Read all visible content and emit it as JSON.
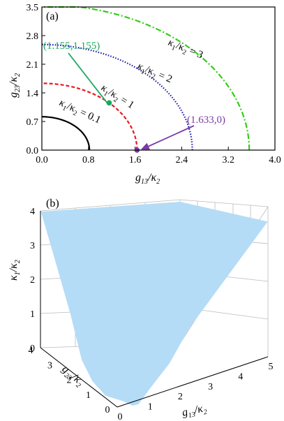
{
  "chart_data": [
    {
      "panel_label": "(a)",
      "type": "line",
      "xlabel": {
        "base": "g",
        "sub": "13",
        "den_base": "κ",
        "den_sub": "2"
      },
      "ylabel": {
        "base": "g",
        "sub": "23",
        "den_base": "κ",
        "den_sub": "2"
      },
      "xlim": [
        0,
        4.0
      ],
      "ylim": [
        0,
        3.5
      ],
      "xticks": [
        "0.0",
        "0.8",
        "1.6",
        "2.4",
        "3.2",
        "4.0"
      ],
      "yticks": [
        "0.0",
        "0.7",
        "1.4",
        "2.1",
        "2.8",
        "3.5"
      ],
      "series": [
        {
          "ratio": 0.1,
          "radius": 0.816,
          "color": "#000000",
          "style": "solid",
          "label": {
            "base": "κ",
            "s1": "1",
            "mid": "/κ",
            "s2": "2",
            "tail": " = 0.1"
          }
        },
        {
          "ratio": 1,
          "radius": 1.633,
          "color": "#e8191f",
          "style": "dashed",
          "label": {
            "base": "κ",
            "s1": "1",
            "mid": "/κ",
            "s2": "2",
            "tail": " = 1"
          }
        },
        {
          "ratio": 2,
          "radius": 2.582,
          "color": "#1a1aa6",
          "style": "dotted",
          "label": {
            "base": "κ",
            "s1": "1",
            "mid": "/κ",
            "s2": "2",
            "tail": " = 2"
          }
        },
        {
          "ratio": 3,
          "radius": 3.559,
          "color": "#35cc1a",
          "style": "dashdot",
          "label": {
            "base": "κ",
            "s1": "1",
            "mid": "/κ",
            "s2": "2",
            "tail": " = 3"
          }
        }
      ],
      "points": [
        {
          "x": 1.155,
          "y": 1.155,
          "text": "(1.155,1.155)",
          "color": "#1aa860"
        },
        {
          "x": 1.633,
          "y": 0,
          "text": "(1.633,0)",
          "color": "#7a3aa6"
        }
      ]
    },
    {
      "panel_label": "(b)",
      "type": "area",
      "surface_color": "#b5dcf6",
      "xlabel": {
        "base": "g",
        "sub": "13",
        "den_base": "κ",
        "den_sub": "2"
      },
      "ylabel": {
        "base": "g",
        "sub": "23",
        "den_base": "κ",
        "den_sub": "2"
      },
      "zlabel": {
        "base": "κ",
        "sub": "1",
        "den_base": "κ",
        "den_sub": "2"
      },
      "xticks": [
        "0",
        "1",
        "2",
        "3",
        "4",
        "5"
      ],
      "yticks": [
        "0",
        "1",
        "2",
        "3",
        "4"
      ],
      "zticks": [
        "0",
        "1",
        "2",
        "3",
        "4"
      ],
      "xlim": [
        0,
        5
      ],
      "ylim": [
        0,
        4
      ],
      "zlim": [
        0,
        4
      ]
    }
  ]
}
